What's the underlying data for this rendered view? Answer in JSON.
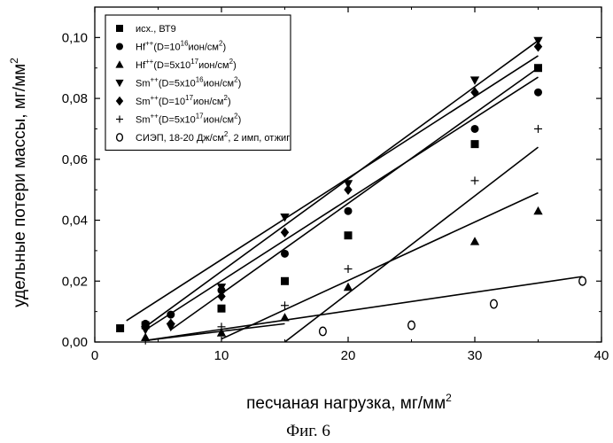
{
  "chart_data": {
    "type": "scatter",
    "xlabel": "песчаная нагрузка, мг/мм",
    "xlabel_sup": "2",
    "ylabel": "удельные потери массы, мг/мм",
    "ylabel_sup": "2",
    "xlim": [
      0,
      40
    ],
    "ylim": [
      0,
      0.11
    ],
    "x_ticks": [
      0,
      10,
      20,
      30,
      40
    ],
    "x_tick_labels": [
      "0",
      "10",
      "20",
      "30",
      "40"
    ],
    "y_ticks": [
      0,
      0.02,
      0.04,
      0.06,
      0.08,
      0.1
    ],
    "y_tick_labels": [
      "0,00",
      "0,02",
      "0,04",
      "0,06",
      "0,08",
      "0,10"
    ],
    "grid": false,
    "legend_position": "top-left",
    "caption": "Фиг. 6",
    "series": [
      {
        "name": "исх., ВТ9",
        "legend_parts": [
          [
            "исх., ВТ9",
            ""
          ]
        ],
        "marker": "square",
        "x": [
          2,
          4,
          10,
          15,
          20,
          30,
          35
        ],
        "y": [
          0.0045,
          0.0055,
          0.011,
          0.02,
          0.035,
          0.065,
          0.09
        ],
        "fit": [
          [
            2.5,
            0.007
          ],
          [
            35,
            0.094
          ]
        ]
      },
      {
        "name": "Hf++(D=10^16ион/см^2)",
        "legend_parts": [
          [
            "Hf",
            ""
          ],
          [
            "++",
            "sup"
          ],
          [
            "(D=10",
            ""
          ],
          [
            "16",
            "sup"
          ],
          [
            "ион/см",
            ""
          ],
          [
            "2",
            "sup"
          ],
          [
            ")",
            ""
          ]
        ],
        "marker": "circle",
        "x": [
          4,
          6,
          10,
          15,
          20,
          30,
          35
        ],
        "y": [
          0.006,
          0.009,
          0.017,
          0.029,
          0.043,
          0.07,
          0.082
        ],
        "fit": [
          [
            4,
            0.004
          ],
          [
            35,
            0.087
          ]
        ]
      },
      {
        "name": "Hf++(D=5x10^17ион/см^2)",
        "legend_parts": [
          [
            "Hf",
            ""
          ],
          [
            "++",
            "sup"
          ],
          [
            "(D=5x10",
            ""
          ],
          [
            "17",
            "sup"
          ],
          [
            "ион/см",
            ""
          ],
          [
            "2",
            "sup"
          ],
          [
            ")",
            ""
          ]
        ],
        "marker": "triangle-up",
        "x": [
          4,
          10,
          15,
          20,
          30,
          35
        ],
        "y": [
          0.0015,
          0.003,
          0.008,
          0.018,
          0.033,
          0.043
        ],
        "fit": [
          [
            10,
            0.001
          ],
          [
            35,
            0.049
          ]
        ]
      },
      {
        "name": "Sm++(D=5x10^16ион/см^2)",
        "legend_parts": [
          [
            "Sm",
            ""
          ],
          [
            "++",
            "sup"
          ],
          [
            "(D=5x10",
            ""
          ],
          [
            "16",
            "sup"
          ],
          [
            "ион/см",
            ""
          ],
          [
            "2",
            "sup"
          ],
          [
            ")",
            ""
          ]
        ],
        "marker": "triangle-down",
        "x": [
          4,
          6,
          10,
          15,
          20,
          30,
          35
        ],
        "y": [
          0.004,
          0.005,
          0.018,
          0.041,
          0.052,
          0.086,
          0.099
        ],
        "fit": [
          [
            4,
            0.005
          ],
          [
            35,
            0.099
          ]
        ]
      },
      {
        "name": "Sm++(D=10^17ион/см^2)",
        "legend_parts": [
          [
            "Sm",
            ""
          ],
          [
            "++",
            "sup"
          ],
          [
            "(D=10",
            ""
          ],
          [
            "17",
            "sup"
          ],
          [
            "ион/см",
            ""
          ],
          [
            "2",
            "sup"
          ],
          [
            ")",
            ""
          ]
        ],
        "marker": "diamond",
        "x": [
          4,
          6,
          10,
          15,
          20,
          30,
          35
        ],
        "y": [
          0.005,
          0.006,
          0.015,
          0.036,
          0.05,
          0.082,
          0.097
        ],
        "fit": [
          [
            6,
            0.004
          ],
          [
            35,
            0.09
          ]
        ]
      },
      {
        "name": "Sm++(D=5x10^17ион/см^2)",
        "legend_parts": [
          [
            "Sm",
            ""
          ],
          [
            "++",
            "sup"
          ],
          [
            "(D=5x10",
            ""
          ],
          [
            "17",
            "sup"
          ],
          [
            "ион/см",
            ""
          ],
          [
            "2",
            "sup"
          ],
          [
            ")",
            ""
          ]
        ],
        "marker": "plus",
        "x": [
          4,
          10,
          15,
          20,
          30,
          35
        ],
        "y": [
          0.0005,
          0.005,
          0.012,
          0.024,
          0.053,
          0.07
        ],
        "fit": [
          [
            15,
            0.0
          ],
          [
            35,
            0.064
          ]
        ]
      },
      {
        "name": "СИЭП, 18-20 Дж/см^2, 2 имп, отжиг",
        "legend_parts": [
          [
            "СИЭП, 18-20 Дж/см",
            ""
          ],
          [
            "2",
            "sup"
          ],
          [
            ", 2 имп, отжиг",
            ""
          ]
        ],
        "marker": "open-circle",
        "x": [
          18,
          25,
          31.5,
          38.5
        ],
        "y": [
          0.0035,
          0.0055,
          0.0125,
          0.02
        ],
        "fit": [
          [
            4,
            0.0005
          ],
          [
            38.5,
            0.0215
          ]
        ]
      }
    ],
    "extra_lines": [
      {
        "points": [
          [
            4,
            0.0005
          ],
          [
            15,
            0.006
          ]
        ]
      }
    ]
  }
}
